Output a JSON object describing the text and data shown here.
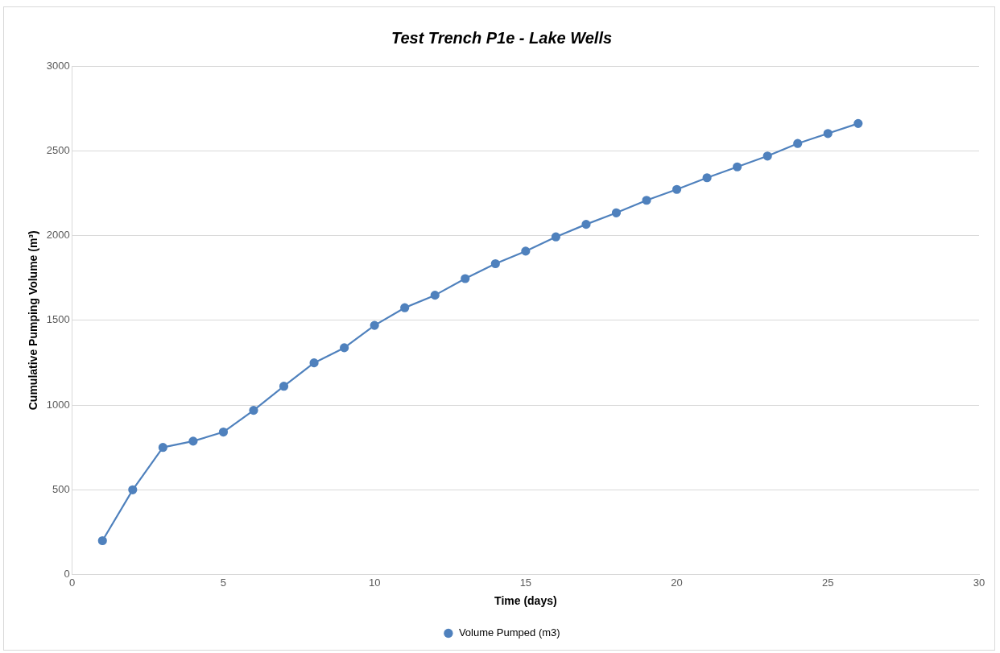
{
  "chart_data": {
    "type": "line",
    "title": "Test Trench P1e - Lake Wells",
    "xlabel": "Time (days)",
    "ylabel": "Cumulative Pumping Volume (m³)",
    "x": [
      1,
      2,
      3,
      4,
      5,
      6,
      7,
      8,
      9,
      10,
      11,
      12,
      13,
      14,
      15,
      16,
      17,
      18,
      19,
      20,
      21,
      22,
      23,
      24,
      25,
      26
    ],
    "series": [
      {
        "name": "Volume Pumped (m3)",
        "color": "#4f81bd",
        "values": [
          200,
          500,
          750,
          787,
          841,
          969,
          1111,
          1249,
          1338,
          1470,
          1574,
          1648,
          1746,
          1834,
          1908,
          1992,
          2066,
          2134,
          2208,
          2272,
          2341,
          2405,
          2469,
          2543,
          2602,
          2661
        ]
      }
    ],
    "xlim": [
      0,
      30
    ],
    "xticks": [
      0,
      5,
      10,
      15,
      20,
      25,
      30
    ],
    "ylim": [
      0,
      3000
    ],
    "yticks": [
      0,
      500,
      1000,
      1500,
      2000,
      2500,
      3000
    ],
    "grid": "y",
    "legend": "bottom",
    "marker": "circle",
    "line_style": "solid"
  }
}
